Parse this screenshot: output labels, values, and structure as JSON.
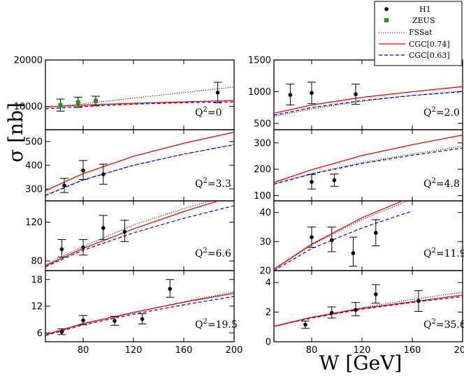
{
  "chart_data": {
    "type": "scatter",
    "ylabel": "σ [nb]",
    "xlabel": "W [GeV]",
    "xlim": [
      50,
      200
    ],
    "x_ticks": [
      80,
      120,
      160,
      200
    ],
    "legend": {
      "placement": "top-right",
      "entries": [
        {
          "name": "H1",
          "style": "black-dot"
        },
        {
          "name": "ZEUS",
          "style": "green-square"
        },
        {
          "name": "FSSat",
          "style": "dotted",
          "color": "#000000"
        },
        {
          "name": "CGC[0.74]",
          "style": "solid",
          "color": "#ff0000"
        },
        {
          "name": "CGC[0.63]",
          "style": "dashed",
          "color": "#0000ff"
        }
      ]
    },
    "panels": [
      {
        "id": "q2-0",
        "q2": "0",
        "column": "left",
        "row": 0,
        "ylim": [
          5000,
          20000
        ],
        "y_ticks": [
          10000,
          20000
        ],
        "h1": [
          {
            "w": 187,
            "s": 13000,
            "lo": 10800,
            "hi": 15200
          }
        ],
        "zeus": [
          {
            "w": 62,
            "s": 10300,
            "lo": 9000,
            "hi": 11600
          },
          {
            "w": 76,
            "s": 10900,
            "lo": 9800,
            "hi": 12000
          },
          {
            "w": 90,
            "s": 11200,
            "lo": 10200,
            "hi": 12200
          }
        ],
        "curves": {
          "fssat": [
            [
              50,
              9800
            ],
            [
              80,
              10600
            ],
            [
              120,
              11800
            ],
            [
              160,
              13000
            ],
            [
              200,
              14200
            ]
          ],
          "cgc74": [
            [
              50,
              9900
            ],
            [
              80,
              10300
            ],
            [
              120,
              10700
            ],
            [
              160,
              11000
            ],
            [
              200,
              11300
            ]
          ],
          "cgc63": [
            [
              50,
              9500
            ],
            [
              80,
              10000
            ],
            [
              120,
              10500
            ],
            [
              160,
              10800
            ],
            [
              200,
              11000
            ]
          ]
        }
      },
      {
        "id": "q2-2",
        "q2": "2.0",
        "column": "right",
        "row": 0,
        "ylim": [
          400,
          1500
        ],
        "y_ticks": [
          500,
          1000,
          1500
        ],
        "h1": [
          {
            "w": 63,
            "s": 950,
            "lo": 790,
            "hi": 1120
          },
          {
            "w": 80,
            "s": 980,
            "lo": 810,
            "hi": 1150
          },
          {
            "w": 115,
            "s": 960,
            "lo": 800,
            "hi": 1120
          }
        ],
        "zeus": [],
        "curves": {
          "fssat": [
            [
              50,
              610
            ],
            [
              80,
              730
            ],
            [
              120,
              850
            ],
            [
              160,
              940
            ],
            [
              200,
              1010
            ]
          ],
          "cgc74": [
            [
              50,
              660
            ],
            [
              80,
              790
            ],
            [
              120,
              910
            ],
            [
              160,
              1000
            ],
            [
              200,
              1080
            ]
          ],
          "cgc63": [
            [
              50,
              630
            ],
            [
              80,
              750
            ],
            [
              120,
              860
            ],
            [
              160,
              940
            ],
            [
              200,
              1000
            ]
          ]
        }
      },
      {
        "id": "q2-3.3",
        "q2": "3.3",
        "column": "left",
        "row": 1,
        "ylim": [
          250,
          550
        ],
        "y_ticks": [
          300,
          400,
          500
        ],
        "h1": [
          {
            "w": 65,
            "s": 315,
            "lo": 285,
            "hi": 345
          },
          {
            "w": 80,
            "s": 378,
            "lo": 340,
            "hi": 420
          },
          {
            "w": 96,
            "s": 362,
            "lo": 320,
            "hi": 405
          }
        ],
        "zeus": [],
        "curves": {
          "fssat": [
            [
              50,
              275
            ],
            [
              80,
              340
            ],
            [
              120,
              400
            ],
            [
              160,
              447
            ],
            [
              200,
              487
            ]
          ],
          "cgc74": [
            [
              50,
              293
            ],
            [
              80,
              365
            ],
            [
              120,
              438
            ],
            [
              160,
              493
            ],
            [
              200,
              540
            ]
          ],
          "cgc63": [
            [
              50,
              272
            ],
            [
              80,
              338
            ],
            [
              120,
              400
            ],
            [
              160,
              447
            ],
            [
              200,
              487
            ]
          ]
        }
      },
      {
        "id": "q2-4.8",
        "q2": "4.8",
        "column": "right",
        "row": 1,
        "ylim": [
          80,
          350
        ],
        "y_ticks": [
          100,
          200,
          300
        ],
        "h1": [
          {
            "w": 80,
            "s": 152,
            "lo": 125,
            "hi": 180
          },
          {
            "w": 98,
            "s": 158,
            "lo": 135,
            "hi": 182
          }
        ],
        "zeus": [],
        "curves": {
          "fssat": [
            [
              50,
              145
            ],
            [
              80,
              184
            ],
            [
              120,
              225
            ],
            [
              160,
              258
            ],
            [
              200,
              287
            ]
          ],
          "cgc74": [
            [
              50,
              150
            ],
            [
              80,
              198
            ],
            [
              120,
              252
            ],
            [
              160,
              293
            ],
            [
              200,
              330
            ]
          ],
          "cgc63": [
            [
              50,
              143
            ],
            [
              80,
              182
            ],
            [
              120,
              222
            ],
            [
              160,
              253
            ],
            [
              200,
              280
            ]
          ]
        }
      },
      {
        "id": "q2-6.6",
        "q2": "6.6",
        "column": "left",
        "row": 2,
        "ylim": [
          70,
          142
        ],
        "y_ticks": [
          80,
          120
        ],
        "h1": [
          {
            "w": 63,
            "s": 92,
            "lo": 84,
            "hi": 102
          },
          {
            "w": 80,
            "s": 94,
            "lo": 86,
            "hi": 102
          },
          {
            "w": 96,
            "s": 114,
            "lo": 102,
            "hi": 127
          },
          {
            "w": 113,
            "s": 110,
            "lo": 100,
            "hi": 122
          }
        ],
        "zeus": [],
        "curves": {
          "fssat": [
            [
              50,
              76
            ],
            [
              80,
              95
            ],
            [
              120,
              117
            ],
            [
              160,
              134
            ],
            [
              200,
              149
            ]
          ],
          "cgc74": [
            [
              50,
              75
            ],
            [
              80,
              93
            ],
            [
              120,
              113
            ],
            [
              160,
              131
            ],
            [
              200,
              147
            ]
          ],
          "cgc63": [
            [
              50,
              74
            ],
            [
              80,
              91
            ],
            [
              120,
              109
            ],
            [
              160,
              124
            ],
            [
              200,
              137
            ]
          ]
        }
      },
      {
        "id": "q2-11.9",
        "q2": "11.9",
        "column": "right",
        "row": 2,
        "ylim": [
          20,
          44
        ],
        "y_ticks": [
          20,
          30,
          40
        ],
        "h1": [
          {
            "w": 80,
            "s": 31.5,
            "lo": 28,
            "hi": 35
          },
          {
            "w": 96,
            "s": 30.5,
            "lo": 26.5,
            "hi": 35
          },
          {
            "w": 113,
            "s": 26,
            "lo": 21.5,
            "hi": 31.5
          },
          {
            "w": 131,
            "s": 33,
            "lo": 28.5,
            "hi": 37.5
          }
        ],
        "zeus": [],
        "curves": {
          "fssat": [
            [
              50,
              20.3
            ],
            [
              80,
              28.8
            ],
            [
              120,
              37.6
            ],
            [
              160,
              44.6
            ]
          ],
          "cgc74": [
            [
              50,
              20.5
            ],
            [
              80,
              29.1
            ],
            [
              120,
              38.2
            ],
            [
              160,
              45.4
            ]
          ],
          "cgc63": [
            [
              50,
              20
            ],
            [
              80,
              27.6
            ],
            [
              120,
              34.7
            ],
            [
              160,
              40.5
            ]
          ]
        }
      },
      {
        "id": "q2-19.5",
        "q2": "19.5",
        "column": "left",
        "row": 3,
        "ylim": [
          4,
          20
        ],
        "y_ticks": [
          6,
          12,
          18
        ],
        "h1": [
          {
            "w": 63,
            "s": 6.2,
            "lo": 5.6,
            "hi": 6.9
          },
          {
            "w": 80,
            "s": 8.8,
            "lo": 7.8,
            "hi": 9.9
          },
          {
            "w": 105,
            "s": 8.7,
            "lo": 7.7,
            "hi": 9.7
          },
          {
            "w": 127,
            "s": 9.1,
            "lo": 8.0,
            "hi": 10.3
          },
          {
            "w": 149,
            "s": 15.9,
            "lo": 14.0,
            "hi": 18.0
          }
        ],
        "zeus": [],
        "curves": {
          "fssat": [
            [
              50,
              5.5
            ],
            [
              80,
              8.0
            ],
            [
              120,
              10.5
            ],
            [
              160,
              13.0
            ],
            [
              200,
              15.2
            ]
          ],
          "cgc74": [
            [
              50,
              5.6
            ],
            [
              80,
              8.1
            ],
            [
              120,
              10.6
            ],
            [
              160,
              12.9
            ],
            [
              200,
              14.9
            ]
          ],
          "cgc63": [
            [
              50,
              5.4
            ],
            [
              80,
              7.8
            ],
            [
              120,
              10.2
            ],
            [
              160,
              12.3
            ],
            [
              200,
              14.2
            ]
          ]
        }
      },
      {
        "id": "q2-35.6",
        "q2": "35.6",
        "column": "right",
        "row": 3,
        "ylim": [
          0,
          4.8
        ],
        "y_ticks": [
          0,
          2,
          4
        ],
        "h1": [
          {
            "w": 75,
            "s": 1.15,
            "lo": 0.9,
            "hi": 1.4
          },
          {
            "w": 96,
            "s": 1.95,
            "lo": 1.6,
            "hi": 2.35
          },
          {
            "w": 115,
            "s": 2.15,
            "lo": 1.75,
            "hi": 2.65
          },
          {
            "w": 131,
            "s": 3.2,
            "lo": 2.6,
            "hi": 3.85
          },
          {
            "w": 165,
            "s": 2.75,
            "lo": 2.05,
            "hi": 3.45
          }
        ],
        "zeus": [],
        "curves": {
          "fssat": [
            [
              50,
              1.0
            ],
            [
              80,
              1.65
            ],
            [
              120,
              2.3
            ],
            [
              160,
              2.85
            ],
            [
              200,
              3.35
            ]
          ],
          "cgc74": [
            [
              50,
              1.05
            ],
            [
              80,
              1.65
            ],
            [
              120,
              2.25
            ],
            [
              160,
              2.7
            ],
            [
              200,
              3.15
            ]
          ],
          "cgc63": [
            [
              50,
              1.05
            ],
            [
              80,
              1.6
            ],
            [
              120,
              2.2
            ],
            [
              160,
              2.65
            ],
            [
              200,
              3.05
            ]
          ]
        }
      }
    ]
  }
}
